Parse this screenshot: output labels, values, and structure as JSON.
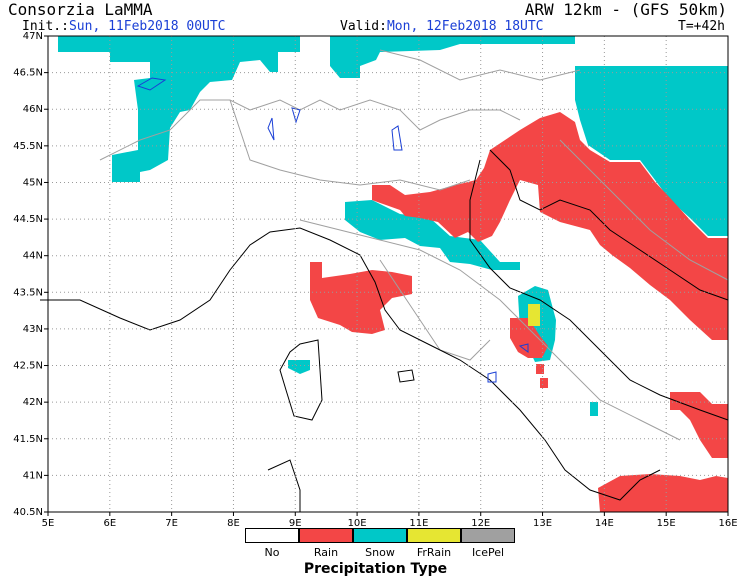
{
  "header": {
    "org": "Consorzia LaMMA",
    "model": "ARW 12km - (GFS 50km)",
    "init_label": "Init.:",
    "init_value": "Sun, 11Feb2018 00UTC",
    "valid_label": "Valid:",
    "valid_value": "Mon, 12Feb2018 18UTC",
    "lead": "T=+42h"
  },
  "axes": {
    "lat_labels": [
      "47N",
      "46.5N",
      "46N",
      "45.5N",
      "45N",
      "44.5N",
      "44N",
      "43.5N",
      "43N",
      "42.5N",
      "42N",
      "41.5N",
      "41N",
      "40.5N"
    ],
    "lon_labels": [
      "5E",
      "6E",
      "7E",
      "8E",
      "9E",
      "10E",
      "11E",
      "12E",
      "13E",
      "14E",
      "15E",
      "16E"
    ]
  },
  "legend": {
    "title": "Precipitation Type",
    "items": [
      {
        "label": "No",
        "color": "#ffffff"
      },
      {
        "label": "Rain",
        "color": "#f34646"
      },
      {
        "label": "Snow",
        "color": "#00c8c8"
      },
      {
        "label": "FrRain",
        "color": "#e6e632"
      },
      {
        "label": "IcePel",
        "color": "#a0a0a0"
      }
    ]
  },
  "colors": {
    "rain": "#f34646",
    "snow": "#00c8c8",
    "frrain": "#e6e632",
    "coast": "#000000",
    "border": "#a0a0a0",
    "lakes": "#1a3fd6"
  }
}
